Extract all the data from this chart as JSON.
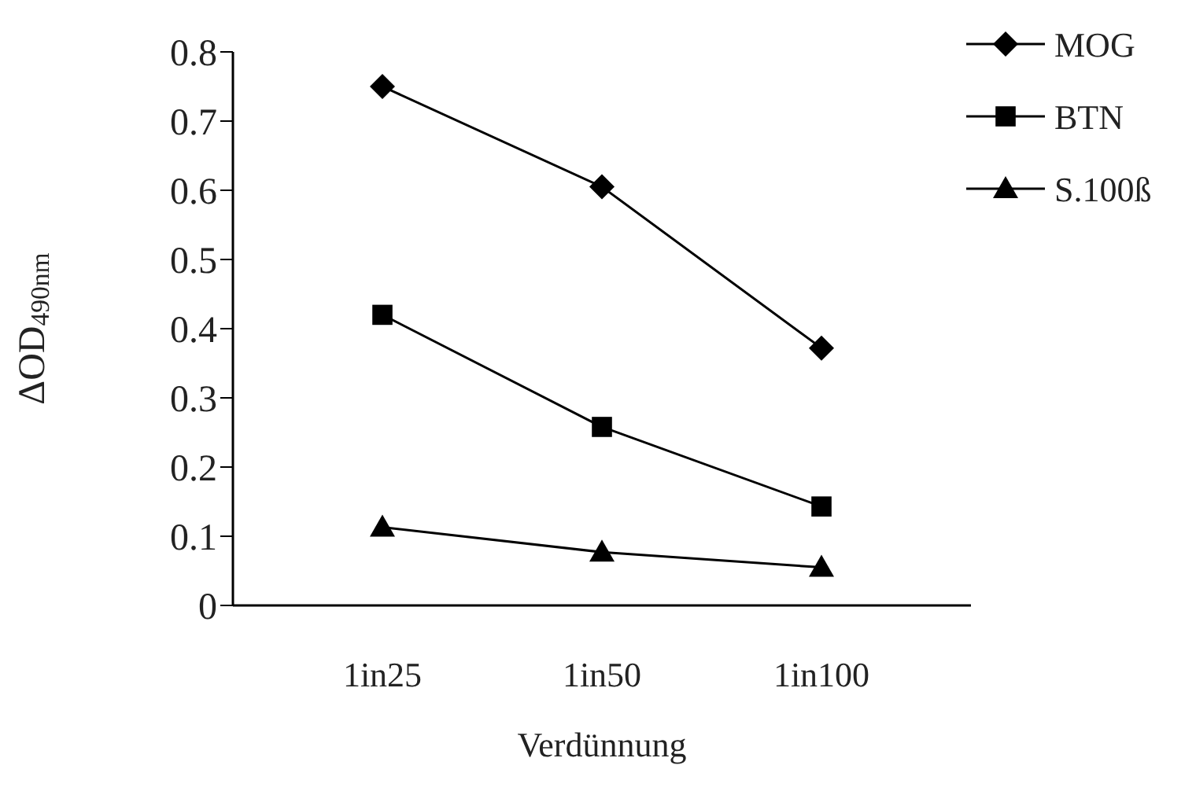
{
  "chart_data": {
    "type": "line",
    "xlabel": "Verdünnung",
    "ylabel": "ΔOD$_{490nm}$",
    "categories": [
      "1in25",
      "1in50",
      "1in100"
    ],
    "ylim": [
      0,
      0.8
    ],
    "yticks": [
      0,
      0.1,
      0.2,
      0.3,
      0.4,
      0.5,
      0.6,
      0.7,
      0.8
    ],
    "grid": false,
    "legend": "top right",
    "series": [
      {
        "name": "MOG",
        "color": "#000000",
        "marker": "diamond",
        "values": [
          0.75,
          0.605,
          0.372
        ]
      },
      {
        "name": "BTN",
        "color": "#000000",
        "marker": "square",
        "values": [
          0.42,
          0.258,
          0.143
        ]
      },
      {
        "name": "S.100ß",
        "color": "#000000",
        "marker": "triangle",
        "values": [
          0.113,
          0.077,
          0.055
        ]
      }
    ]
  }
}
